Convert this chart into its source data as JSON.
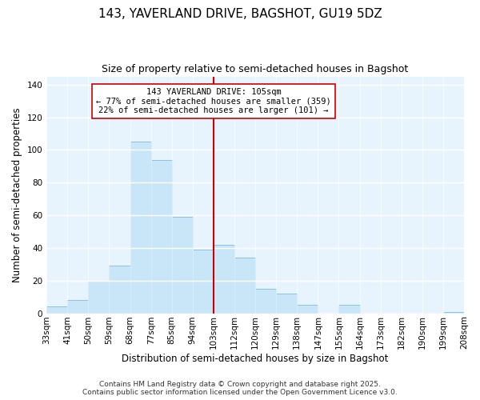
{
  "title": "143, YAVERLAND DRIVE, BAGSHOT, GU19 5DZ",
  "subtitle": "Size of property relative to semi-detached houses in Bagshot",
  "xlabel": "Distribution of semi-detached houses by size in Bagshot",
  "ylabel": "Number of semi-detached properties",
  "bar_color": "#c8e6f8",
  "bar_edgecolor": "#7bbde0",
  "background_color": "#ffffff",
  "plot_bg_color": "#e8f4fd",
  "grid_color": "#ffffff",
  "bin_labels": [
    "33sqm",
    "41sqm",
    "50sqm",
    "59sqm",
    "68sqm",
    "77sqm",
    "85sqm",
    "94sqm",
    "103sqm",
    "112sqm",
    "120sqm",
    "129sqm",
    "138sqm",
    "147sqm",
    "155sqm",
    "164sqm",
    "173sqm",
    "182sqm",
    "190sqm",
    "199sqm",
    "208sqm"
  ],
  "bar_heights": [
    4,
    8,
    20,
    29,
    105,
    94,
    59,
    39,
    42,
    34,
    15,
    12,
    5,
    0,
    5,
    0,
    0,
    0,
    0,
    1
  ],
  "ylim": [
    0,
    145
  ],
  "yticks": [
    0,
    20,
    40,
    60,
    80,
    100,
    120,
    140
  ],
  "vline_bin_index": 8,
  "annotation_line1": "143 YAVERLAND DRIVE: 105sqm",
  "annotation_line2": "← 77% of semi-detached houses are smaller (359)",
  "annotation_line3": "22% of semi-detached houses are larger (101) →",
  "vline_color": "#cc0000",
  "annotation_box_edgecolor": "#cc0000",
  "footer_line1": "Contains HM Land Registry data © Crown copyright and database right 2025.",
  "footer_line2": "Contains public sector information licensed under the Open Government Licence v3.0.",
  "title_fontsize": 11,
  "subtitle_fontsize": 9,
  "xlabel_fontsize": 8.5,
  "ylabel_fontsize": 8.5,
  "tick_fontsize": 7.5,
  "annotation_fontsize": 7.5,
  "footer_fontsize": 6.5
}
